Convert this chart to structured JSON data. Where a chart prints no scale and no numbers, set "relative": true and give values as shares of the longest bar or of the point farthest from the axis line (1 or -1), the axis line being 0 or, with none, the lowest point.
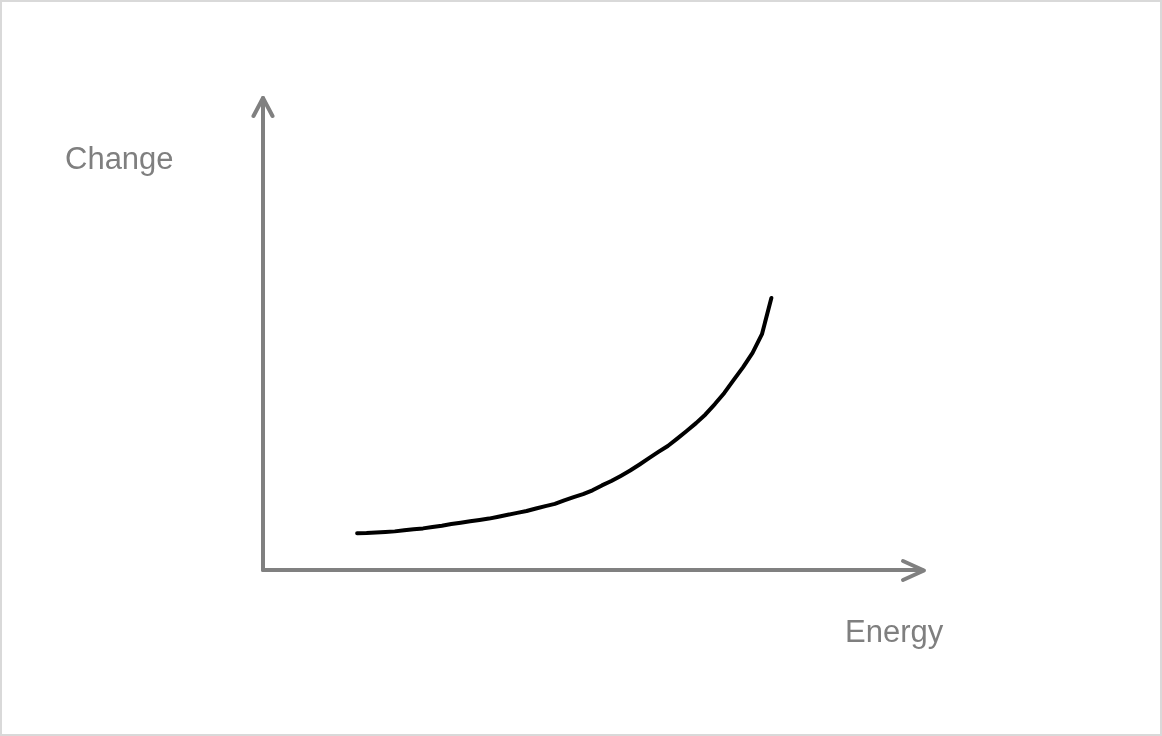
{
  "chart_data": {
    "type": "line",
    "xlabel": "Energy",
    "ylabel": "Change",
    "relative": true,
    "categories": [
      null,
      null,
      null,
      null,
      null,
      null,
      null,
      null,
      null,
      null,
      null,
      null,
      null,
      null,
      null,
      null,
      null,
      null,
      null,
      null,
      null,
      null,
      null,
      null,
      null,
      null,
      null,
      null,
      null,
      null,
      null,
      null,
      null,
      null,
      null,
      null,
      null,
      null,
      null,
      null,
      null,
      null,
      null,
      null,
      null,
      null,
      null,
      null,
      null,
      null,
      null,
      null,
      null,
      null,
      null,
      null,
      null,
      null,
      null,
      null,
      null,
      null,
      null,
      null,
      null,
      null,
      null,
      null,
      null,
      null,
      null
    ],
    "series": [
      {
        "color": "#000000",
        "values": [
          null,
          null,
          null,
          null,
          null,
          null,
          null,
          null,
          null,
          null,
          0.135,
          0.136,
          0.138,
          0.14,
          0.142,
          0.146,
          0.15,
          0.153,
          0.158,
          0.163,
          0.169,
          0.174,
          0.179,
          0.184,
          0.189,
          0.196,
          0.203,
          0.21,
          0.217,
          0.226,
          0.235,
          0.243,
          0.256,
          0.268,
          0.279,
          0.293,
          0.311,
          0.327,
          0.346,
          0.366,
          0.388,
          0.411,
          0.434,
          0.456,
          0.483,
          0.511,
          0.54,
          0.572,
          0.61,
          0.651,
          0.699,
          0.746,
          0.798,
          0.867,
          1,
          null,
          null,
          null,
          null,
          null,
          null,
          null,
          null,
          null,
          null,
          null,
          null,
          null,
          null,
          null,
          null
        ]
      }
    ]
  }
}
